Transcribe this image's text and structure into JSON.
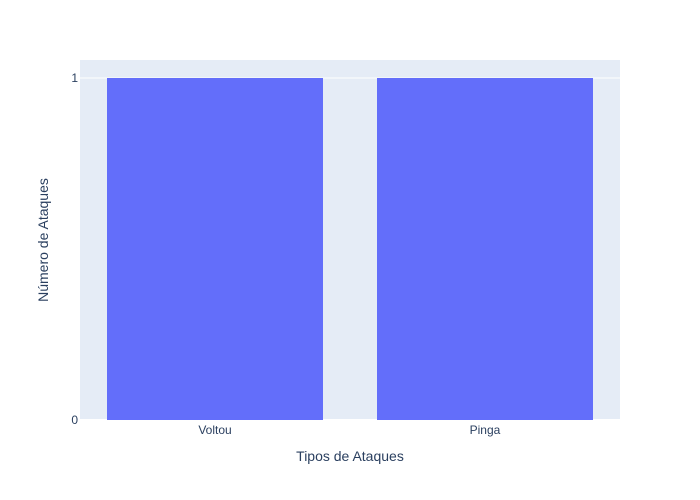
{
  "chart_data": {
    "type": "bar",
    "categories": [
      "Voltou",
      "Pinga"
    ],
    "values": [
      1,
      1
    ],
    "title": "",
    "xlabel": "Tipos de Ataques",
    "ylabel": "Número de Ataques",
    "ylim": [
      0,
      1
    ],
    "yticks": [
      0,
      1
    ],
    "grid": true,
    "legend": "none",
    "colors": {
      "bar": "#636efa",
      "plot_background": "#e5ecf6",
      "gridline": "#ffffff",
      "text": "#2a3f5f"
    }
  }
}
